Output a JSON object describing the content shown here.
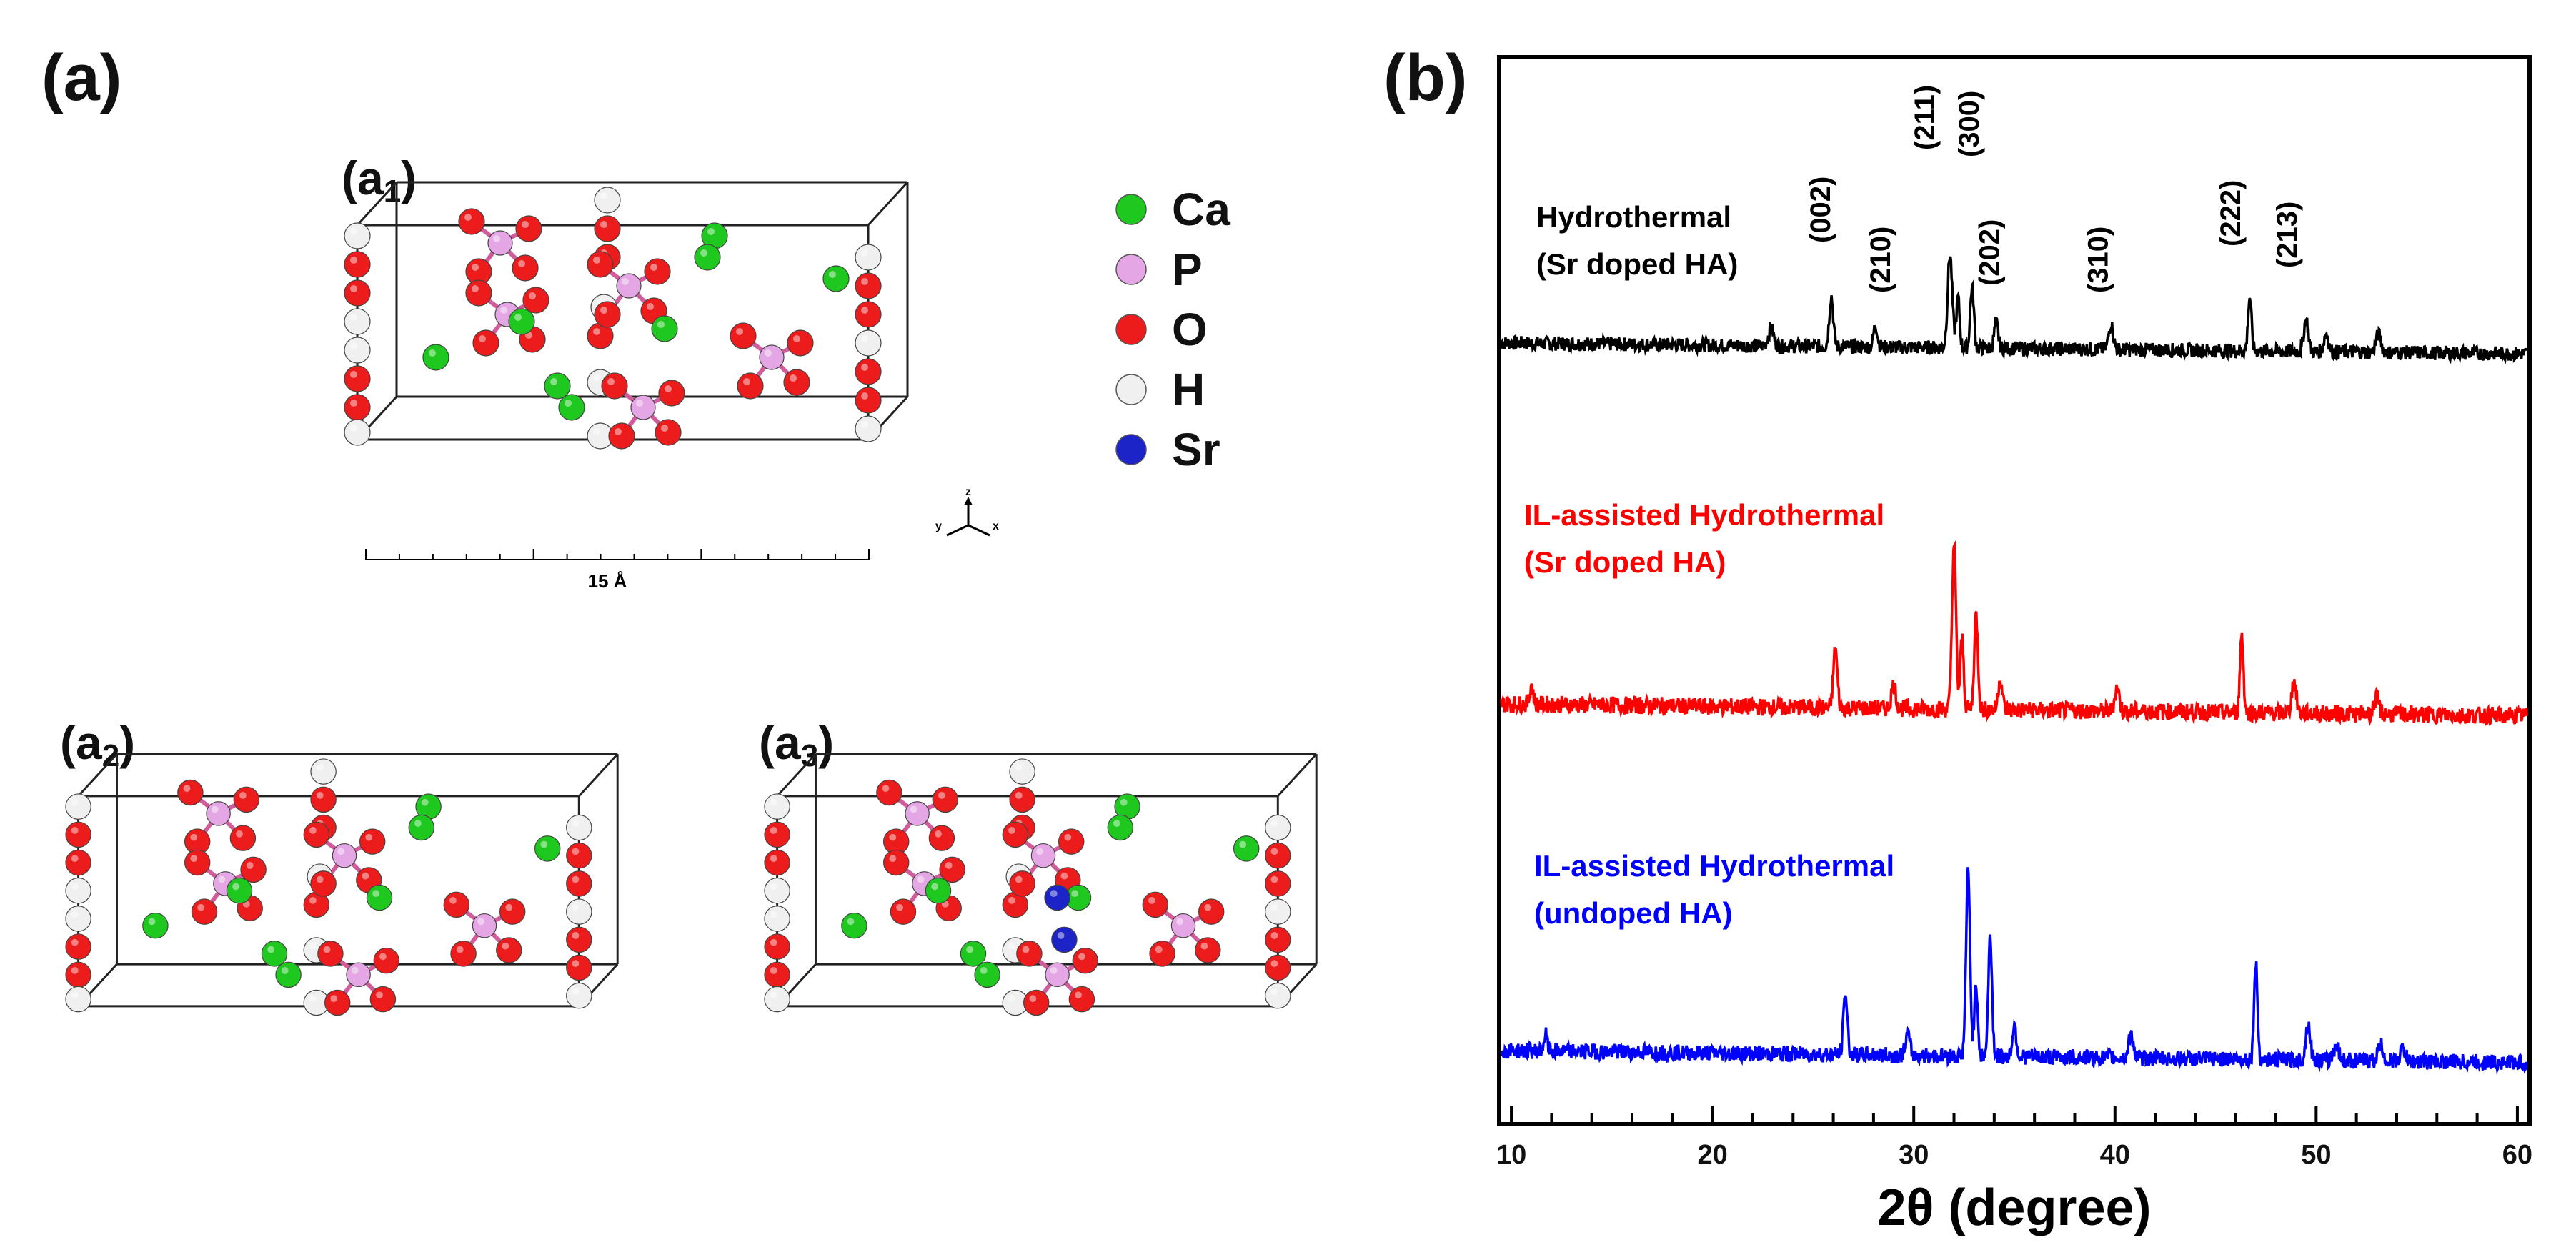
{
  "panel_a": {
    "label": "(a)",
    "sublabels": {
      "a1": "(a",
      "a1_sub": "1",
      "a2": "(a",
      "a2_sub": "2",
      "a3": "(a",
      "a3_sub": "3",
      "close": ")"
    },
    "legend": [
      {
        "element": "Ca",
        "color": "#1ec81e"
      },
      {
        "element": "P",
        "color": "#e4a6e4"
      },
      {
        "element": "O",
        "color": "#ec1c1c"
      },
      {
        "element": "H",
        "color": "#f0f0f0"
      },
      {
        "element": "Sr",
        "color": "#1c24c8"
      }
    ],
    "scale_bar_label": "15 Å",
    "axes_triad": {
      "x": "x",
      "y": "y",
      "z": "z"
    }
  },
  "panel_b": {
    "label": "(b)"
  },
  "chart_data": {
    "type": "line",
    "title": "",
    "xlabel": "2θ (degree)",
    "ylabel": "",
    "xlim": [
      9.5,
      60.5
    ],
    "x_ticks": [
      10,
      20,
      30,
      40,
      50,
      60
    ],
    "y_ticks_shown": false,
    "series": [
      {
        "name": "Hydrothermal (Sr doped HA)",
        "label_lines": [
          "Hydrothermal",
          "(Sr doped HA)"
        ],
        "color": "#000000",
        "baseline": 0.0,
        "noise": 0.02,
        "peaks": [
          {
            "x": 22.9,
            "h": 0.05,
            "w": 0.18
          },
          {
            "x": 25.9,
            "h": 0.14,
            "w": 0.14
          },
          {
            "x": 28.1,
            "h": 0.06,
            "w": 0.14
          },
          {
            "x": 31.8,
            "h": 0.26,
            "w": 0.16
          },
          {
            "x": 32.2,
            "h": 0.14,
            "w": 0.12
          },
          {
            "x": 32.9,
            "h": 0.17,
            "w": 0.13
          },
          {
            "x": 34.1,
            "h": 0.07,
            "w": 0.14
          },
          {
            "x": 39.8,
            "h": 0.07,
            "w": 0.16
          },
          {
            "x": 46.7,
            "h": 0.15,
            "w": 0.12
          },
          {
            "x": 49.5,
            "h": 0.09,
            "w": 0.16
          },
          {
            "x": 50.5,
            "h": 0.05,
            "w": 0.16
          },
          {
            "x": 53.1,
            "h": 0.05,
            "w": 0.18
          }
        ],
        "hkl_labels": [
          {
            "text": "(002)",
            "x": 25.9
          },
          {
            "text": "(210)",
            "x": 28.9
          },
          {
            "text": "(211)",
            "x": 31.1
          },
          {
            "text": "(300)",
            "x": 33.3
          },
          {
            "text": "(202)",
            "x": 34.3
          },
          {
            "text": "(310)",
            "x": 39.7
          },
          {
            "text": "(222)",
            "x": 46.3
          },
          {
            "text": "(213)",
            "x": 49.1
          }
        ]
      },
      {
        "name": "IL-assisted Hydrothermal (Sr doped HA)",
        "label_lines": [
          "IL-assisted Hydrothermal",
          "(Sr doped HA)"
        ],
        "color": "#ff0000",
        "baseline": 0.0,
        "noise": 0.022,
        "peaks": [
          {
            "x": 11.0,
            "h": 0.05,
            "w": 0.12
          },
          {
            "x": 26.1,
            "h": 0.15,
            "w": 0.14
          },
          {
            "x": 29.0,
            "h": 0.06,
            "w": 0.16
          },
          {
            "x": 32.0,
            "h": 0.42,
            "w": 0.14
          },
          {
            "x": 32.4,
            "h": 0.18,
            "w": 0.12
          },
          {
            "x": 33.1,
            "h": 0.24,
            "w": 0.13
          },
          {
            "x": 34.3,
            "h": 0.08,
            "w": 0.14
          },
          {
            "x": 40.1,
            "h": 0.06,
            "w": 0.16
          },
          {
            "x": 46.3,
            "h": 0.2,
            "w": 0.12
          },
          {
            "x": 48.9,
            "h": 0.08,
            "w": 0.16
          },
          {
            "x": 53.0,
            "h": 0.04,
            "w": 0.18
          }
        ]
      },
      {
        "name": "IL-assisted Hydrothermal (undoped HA)",
        "label_lines": [
          "IL-assisted Hydrothermal",
          "(undoped HA)"
        ],
        "color": "#0000ff",
        "baseline": 0.0,
        "noise": 0.02,
        "peaks": [
          {
            "x": 11.7,
            "h": 0.04,
            "w": 0.12
          },
          {
            "x": 26.6,
            "h": 0.15,
            "w": 0.14
          },
          {
            "x": 29.7,
            "h": 0.05,
            "w": 0.16
          },
          {
            "x": 32.7,
            "h": 0.46,
            "w": 0.14
          },
          {
            "x": 33.1,
            "h": 0.18,
            "w": 0.12
          },
          {
            "x": 33.8,
            "h": 0.3,
            "w": 0.13
          },
          {
            "x": 35.0,
            "h": 0.08,
            "w": 0.14
          },
          {
            "x": 40.8,
            "h": 0.06,
            "w": 0.16
          },
          {
            "x": 47.0,
            "h": 0.24,
            "w": 0.12
          },
          {
            "x": 49.6,
            "h": 0.09,
            "w": 0.16
          },
          {
            "x": 51.0,
            "h": 0.04,
            "w": 0.18
          },
          {
            "x": 53.2,
            "h": 0.04,
            "w": 0.18
          },
          {
            "x": 54.3,
            "h": 0.03,
            "w": 0.18
          }
        ]
      }
    ]
  }
}
